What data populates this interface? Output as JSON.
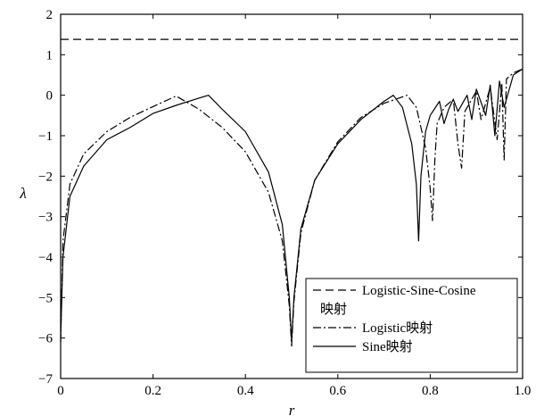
{
  "chart_data": {
    "type": "line",
    "xlabel": "r",
    "ylabel": "λ",
    "xlim": [
      0,
      1
    ],
    "ylim": [
      -7,
      2
    ],
    "x_ticks": [
      "0",
      "0.2",
      "0.4",
      "0.6",
      "0.8",
      "1.0"
    ],
    "y_ticks": [
      "2",
      "1",
      "0",
      "−1",
      "−2",
      "−3",
      "−4",
      "−5",
      "−6",
      "−7"
    ],
    "legend_position": "bottom-right",
    "series": [
      {
        "name": "Logistic-Sine-Cosine 映射",
        "legend_lines": [
          "Logistic-Sine-Cosine",
          "映射"
        ],
        "style": "dashed",
        "x": [
          0,
          1
        ],
        "y": [
          1.38,
          1.38
        ]
      },
      {
        "name": "Logistic映射",
        "legend_lines": [
          "Logistic映射"
        ],
        "style": "dashdot",
        "x": [
          0,
          0.005,
          0.02,
          0.05,
          0.1,
          0.15,
          0.2,
          0.25,
          0.3,
          0.35,
          0.4,
          0.45,
          0.48,
          0.495,
          0.5,
          0.505,
          0.52,
          0.55,
          0.6,
          0.65,
          0.7,
          0.75,
          0.77,
          0.79,
          0.8,
          0.805,
          0.81,
          0.815,
          0.83,
          0.85,
          0.86,
          0.868,
          0.875,
          0.89,
          0.9,
          0.91,
          0.93,
          0.945,
          0.955,
          0.96,
          0.965,
          0.98,
          1.0
        ],
        "y": [
          -6.1,
          -3.6,
          -2.2,
          -1.45,
          -0.9,
          -0.55,
          -0.28,
          -0.02,
          -0.35,
          -0.8,
          -1.4,
          -2.4,
          -3.6,
          -5.2,
          -6.2,
          -5.1,
          -3.4,
          -2.1,
          -1.15,
          -0.55,
          -0.2,
          0,
          -0.3,
          -1.3,
          -2.3,
          -3.1,
          -1.6,
          -0.7,
          -0.3,
          -0.1,
          -1.2,
          -1.8,
          -0.4,
          -0.1,
          0.1,
          -0.6,
          0.2,
          -1.1,
          0.3,
          -1.6,
          0.4,
          0.55,
          0.65
        ]
      },
      {
        "name": "Sine映射",
        "legend_lines": [
          "Sine映射"
        ],
        "style": "solid",
        "x": [
          0,
          0.005,
          0.02,
          0.05,
          0.1,
          0.15,
          0.2,
          0.25,
          0.3,
          0.32,
          0.35,
          0.4,
          0.45,
          0.48,
          0.495,
          0.5,
          0.505,
          0.52,
          0.55,
          0.6,
          0.65,
          0.7,
          0.72,
          0.74,
          0.76,
          0.77,
          0.775,
          0.78,
          0.79,
          0.8,
          0.82,
          0.83,
          0.84,
          0.85,
          0.86,
          0.88,
          0.89,
          0.9,
          0.92,
          0.93,
          0.94,
          0.95,
          0.96,
          0.98,
          1.0
        ],
        "y": [
          -6.0,
          -4.0,
          -2.5,
          -1.75,
          -1.1,
          -0.8,
          -0.45,
          -0.25,
          -0.07,
          0,
          -0.35,
          -0.9,
          -1.9,
          -3.2,
          -5.0,
          -6.1,
          -5.0,
          -3.3,
          -2.1,
          -1.2,
          -0.6,
          -0.15,
          0,
          -0.3,
          -1.2,
          -2.2,
          -3.6,
          -2.0,
          -0.9,
          -0.5,
          -0.15,
          -0.7,
          -0.35,
          -0.1,
          -0.4,
          0,
          -0.6,
          0.15,
          -0.5,
          0.25,
          -1.0,
          0.35,
          -0.3,
          0.5,
          0.65
        ]
      }
    ]
  }
}
